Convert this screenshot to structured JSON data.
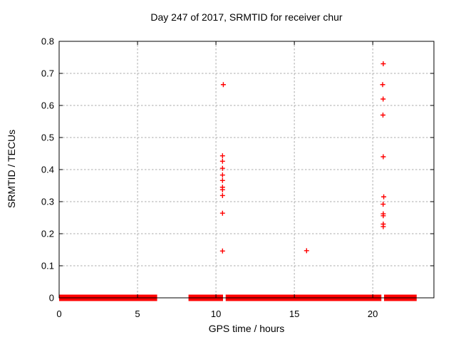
{
  "colors": {
    "marker": "#ff0000",
    "grid": "#ababab",
    "axis": "#000000",
    "background": "#ffffff"
  },
  "chart_data": {
    "type": "scatter",
    "title": "Day 247 of 2017, SRMTID for receiver chur",
    "xlabel": "GPS time / hours",
    "ylabel": "SRMTID / TECUs",
    "xlim": [
      0,
      23.9
    ],
    "ylim": [
      0,
      0.8
    ],
    "xticks": [
      0,
      5,
      10,
      15,
      20
    ],
    "xtick_labels": [
      "0",
      "5",
      "10",
      "15",
      "20"
    ],
    "yticks": [
      0,
      0.1,
      0.2,
      0.3,
      0.4,
      0.5,
      0.6,
      0.7,
      0.8
    ],
    "ytick_labels": [
      "0",
      "0.1",
      "0.2",
      "0.3",
      "0.4",
      "0.5",
      "0.6",
      "0.7",
      "0.8"
    ],
    "grid": true,
    "legend": "none",
    "marker": "plus",
    "marker_color": "#ff0000",
    "series": [
      {
        "name": "SRMTID",
        "points": [
          [
            10.47,
            0.665
          ],
          [
            10.42,
            0.443
          ],
          [
            10.42,
            0.426
          ],
          [
            10.42,
            0.404
          ],
          [
            10.42,
            0.383
          ],
          [
            10.42,
            0.366
          ],
          [
            10.42,
            0.345
          ],
          [
            10.42,
            0.337
          ],
          [
            10.42,
            0.319
          ],
          [
            10.42,
            0.264
          ],
          [
            10.42,
            0.146
          ],
          [
            15.78,
            0.147
          ],
          [
            20.67,
            0.73
          ],
          [
            20.63,
            0.665
          ],
          [
            20.66,
            0.62
          ],
          [
            20.65,
            0.57
          ],
          [
            20.67,
            0.44
          ],
          [
            20.7,
            0.315
          ],
          [
            20.66,
            0.292
          ],
          [
            20.67,
            0.262
          ],
          [
            20.67,
            0.256
          ],
          [
            20.67,
            0.23
          ],
          [
            20.67,
            0.222
          ]
        ]
      }
    ],
    "zero_band_segments": [
      [
        0,
        6.25
      ],
      [
        8.25,
        10.45
      ],
      [
        10.62,
        20.55
      ],
      [
        20.72,
        22.8
      ]
    ]
  }
}
